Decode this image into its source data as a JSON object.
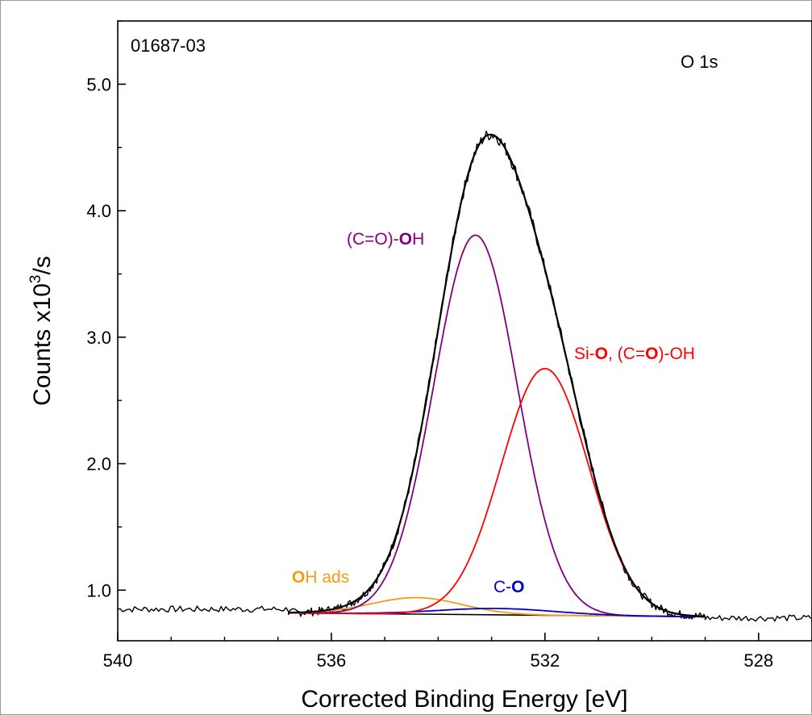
{
  "chart_data": {
    "type": "line",
    "sample_id": "01687-03",
    "region": "O 1s",
    "xlabel": "Corrected Binding Energy [eV]",
    "ylabel_main": "Counts x10",
    "ylabel_sup": "3",
    "ylabel_tail": "/s",
    "xlim": [
      540,
      527
    ],
    "ylim": [
      0.6,
      5.5
    ],
    "x_reversed": true,
    "x_ticks": [
      540,
      536,
      532,
      528
    ],
    "x_tick_labels": [
      "540",
      "536",
      "532",
      "528"
    ],
    "y_ticks": [
      1.0,
      2.0,
      3.0,
      4.0,
      5.0
    ],
    "y_tick_labels": [
      "1.0",
      "2.0",
      "3.0",
      "4.0",
      "5.0"
    ],
    "grid": false,
    "baseline": {
      "color": "#000000",
      "points": [
        [
          536.8,
          0.82
        ],
        [
          529.0,
          0.79
        ]
      ]
    },
    "measured": {
      "color": "#000000",
      "segments": [
        {
          "x_start": 540.0,
          "x_end": 536.8,
          "level": 0.85
        },
        {
          "x_start": 529.0,
          "x_end": 527.0,
          "level": 0.78
        }
      ],
      "fit_range": [
        536.8,
        529.0
      ]
    },
    "components": [
      {
        "label_a": "",
        "label_b": "O",
        "label_c": "H ads",
        "color": "#f39c12",
        "center": 534.4,
        "height": 0.13,
        "sigma": 0.85
      },
      {
        "label_a": "(C=O)-",
        "label_b": "O",
        "label_c": "H",
        "color": "#800080",
        "center": 533.3,
        "height": 3.0,
        "sigma": 0.78
      },
      {
        "label_a": "C-",
        "label_b": "O",
        "label_c": "",
        "color": "#0000cc",
        "center": 532.9,
        "height": 0.05,
        "sigma": 1.1
      },
      {
        "label_a": "Si-",
        "label_b": "O",
        "label_c": ", (C=",
        "label_d": "O",
        "label_e": ")-OH",
        "color": "#ff0000",
        "center": 532.0,
        "height": 1.95,
        "sigma": 0.82
      }
    ]
  }
}
